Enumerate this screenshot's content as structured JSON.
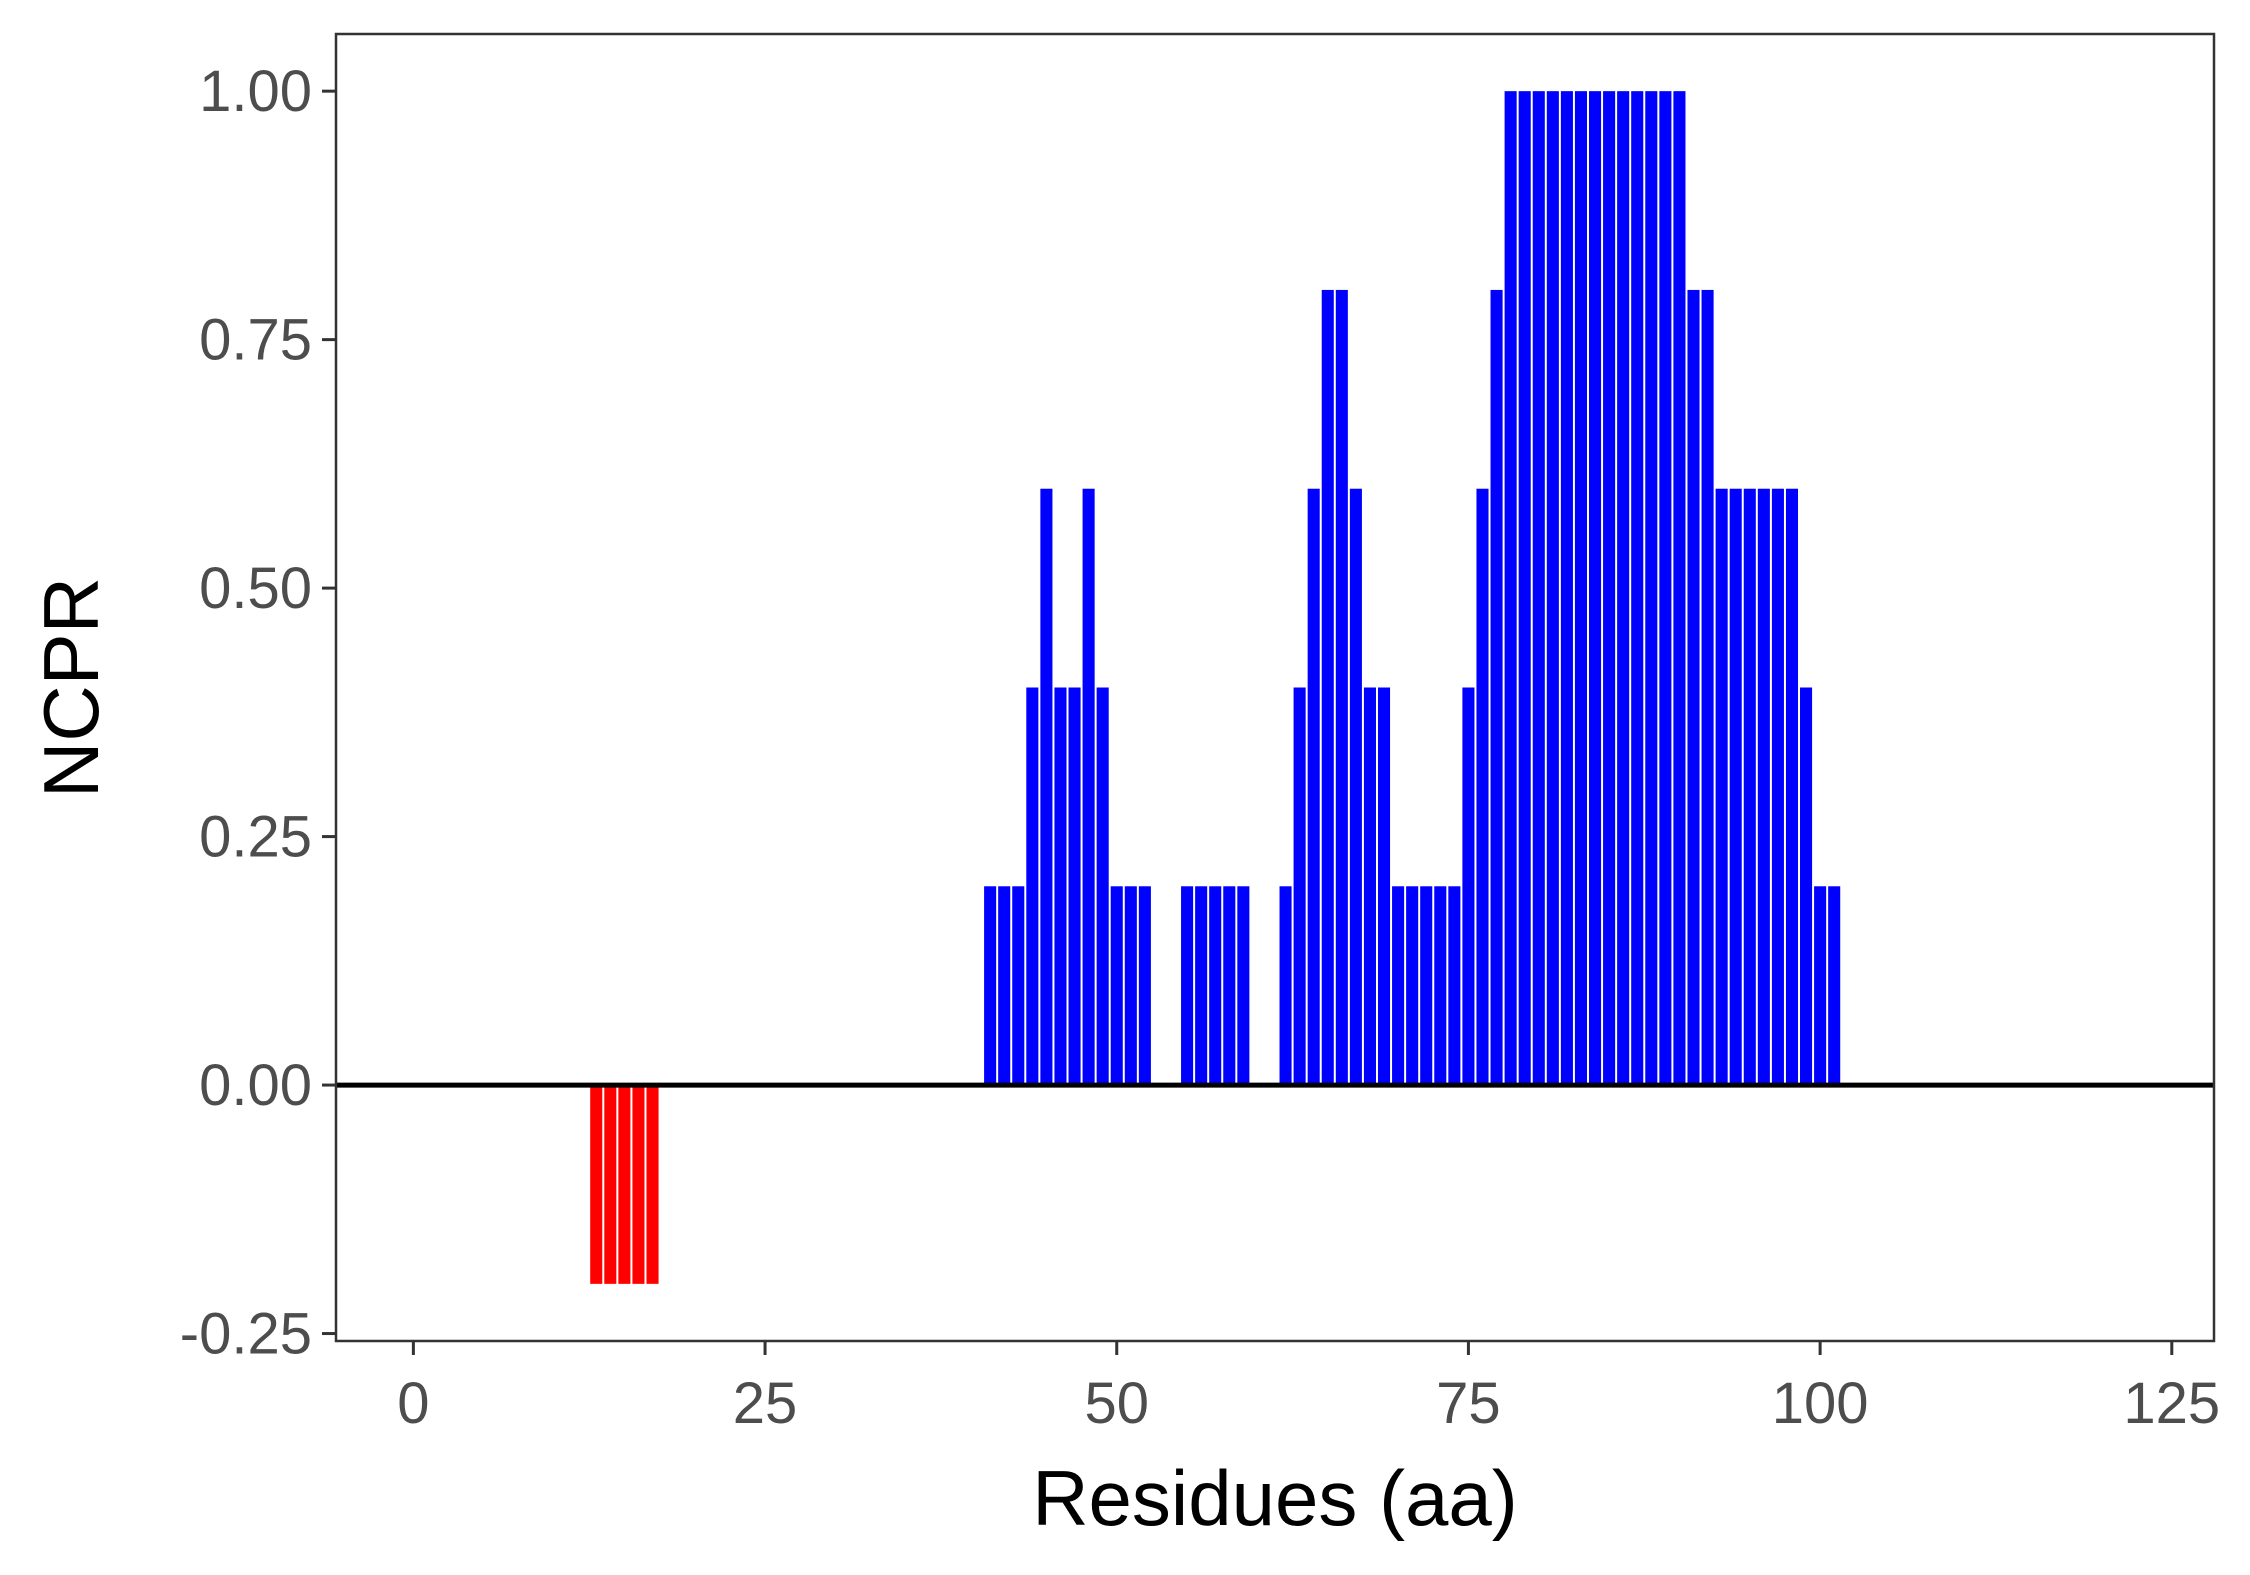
{
  "chart_data": {
    "type": "bar",
    "xlabel": "Residues (aa)",
    "ylabel": "NCPR",
    "xlim": [
      -5.5,
      128
    ],
    "ylim": [
      -0.2575,
      1.0575
    ],
    "x_ticks": [
      0,
      25,
      50,
      75,
      100,
      125
    ],
    "x_tick_labels": [
      "0",
      "25",
      "50",
      "75",
      "100",
      "125"
    ],
    "y_ticks": [
      -0.25,
      0,
      0.25,
      0.5,
      0.75,
      1.0
    ],
    "y_tick_labels": [
      "-0.25",
      "0.00",
      "0.25",
      "0.50",
      "0.75",
      "1.00"
    ],
    "grid": false,
    "zero_line": true,
    "colors": {
      "positive": "#0000ff",
      "negative": "#ff0000",
      "zero_line": "#000000",
      "panel_border": "#333333"
    },
    "series": [
      {
        "x": [
          13,
          14,
          15,
          16,
          17,
          41,
          42,
          43,
          44,
          45,
          46,
          47,
          48,
          49,
          50,
          51,
          52,
          55,
          56,
          57,
          58,
          59,
          62,
          63,
          64,
          65,
          66,
          67,
          68,
          69,
          70,
          71,
          72,
          73,
          74,
          75,
          76,
          77,
          78,
          79,
          80,
          81,
          82,
          83,
          84,
          85,
          86,
          87,
          88,
          89,
          90,
          91,
          92,
          93,
          94,
          95,
          96,
          97,
          98,
          99,
          100,
          101
        ],
        "values": [
          -0.2,
          -0.2,
          -0.2,
          -0.2,
          -0.2,
          0.2,
          0.2,
          0.2,
          0.4,
          0.6,
          0.4,
          0.4,
          0.6,
          0.4,
          0.2,
          0.2,
          0.2,
          0.2,
          0.2,
          0.2,
          0.2,
          0.2,
          0.2,
          0.4,
          0.6,
          0.8,
          0.8,
          0.6,
          0.4,
          0.4,
          0.2,
          0.2,
          0.2,
          0.2,
          0.2,
          0.4,
          0.6,
          0.8,
          1.0,
          1.0,
          1.0,
          1.0,
          1.0,
          1.0,
          1.0,
          1.0,
          1.0,
          1.0,
          1.0,
          1.0,
          1.0,
          0.8,
          0.8,
          0.6,
          0.6,
          0.6,
          0.6,
          0.6,
          0.6,
          0.4,
          0.2,
          0.2
        ]
      }
    ]
  }
}
